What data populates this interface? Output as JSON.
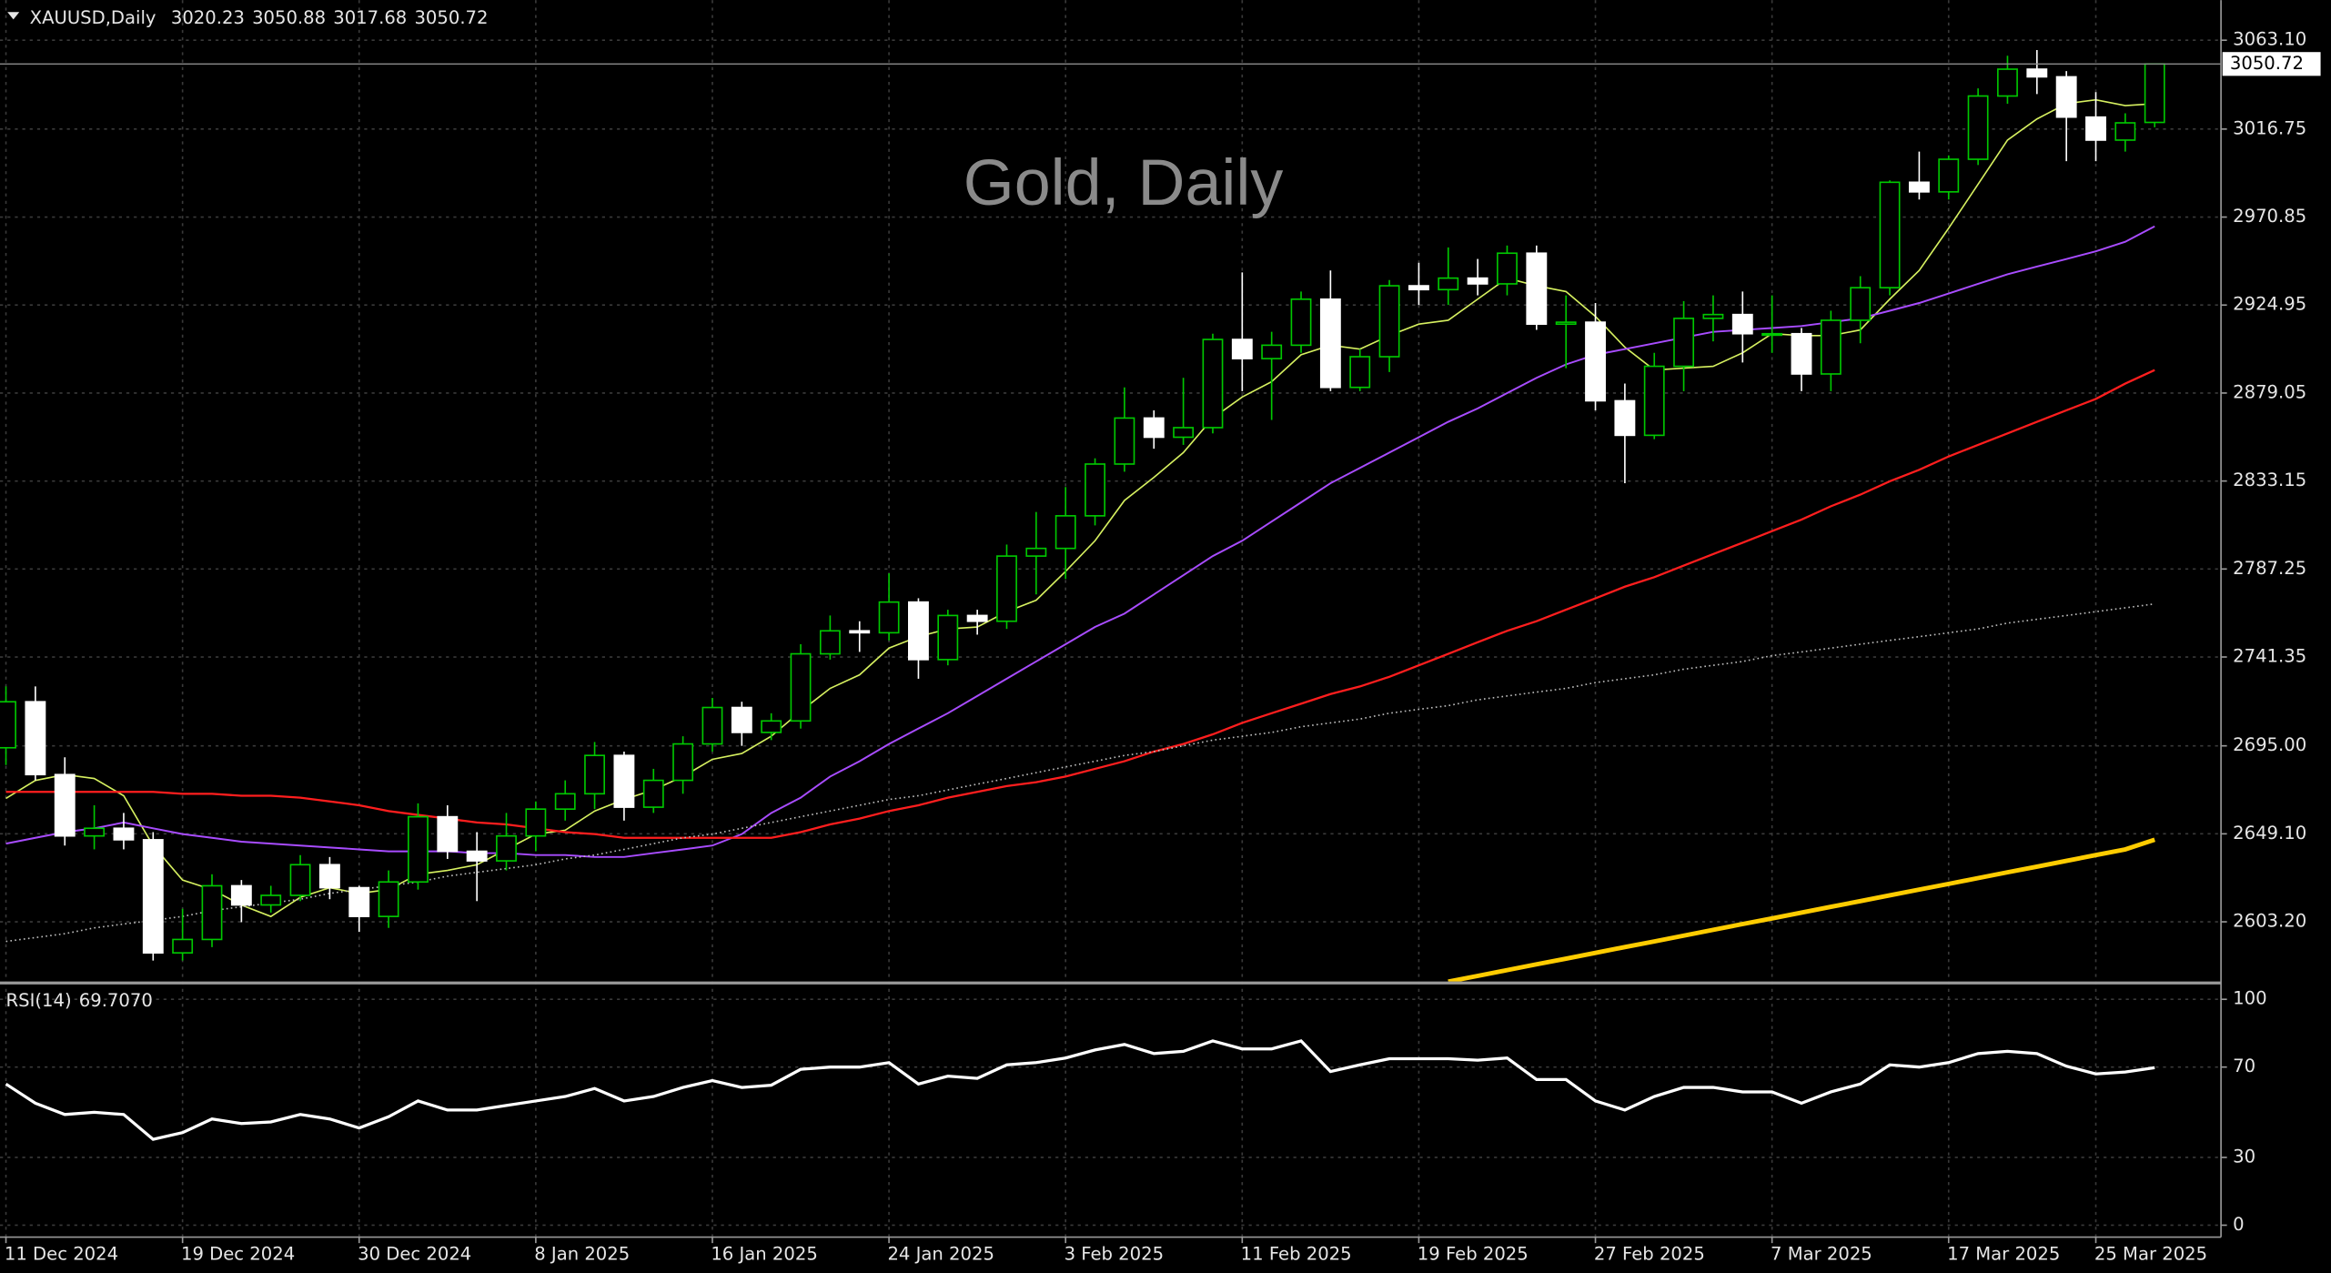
{
  "chart_data": {
    "type": "candlestick",
    "symbol": "XAUUSD,Daily",
    "title": "Gold, Daily",
    "categories": [
      "11 Dec 2024",
      null,
      null,
      null,
      null,
      null,
      "19 Dec 2024",
      null,
      null,
      null,
      null,
      null,
      "30 Dec 2024",
      null,
      null,
      null,
      null,
      null,
      "8 Jan 2025",
      null,
      null,
      null,
      null,
      null,
      "16 Jan 2025",
      null,
      null,
      null,
      null,
      null,
      "24 Jan 2025",
      null,
      null,
      null,
      null,
      null,
      "3 Feb 2025",
      null,
      null,
      null,
      null,
      null,
      "11 Feb 2025",
      null,
      null,
      null,
      null,
      null,
      "19 Feb 2025",
      null,
      null,
      null,
      null,
      null,
      "27 Feb 2025",
      null,
      null,
      null,
      null,
      null,
      "7 Mar 2025",
      null,
      null,
      null,
      null,
      null,
      "17 Mar 2025",
      null,
      null,
      null,
      null,
      "25 Mar 2025",
      null,
      null
    ],
    "open": [
      2694,
      2718,
      2680,
      2648,
      2652,
      2646,
      2587,
      2594,
      2622,
      2612,
      2617,
      2633,
      2621,
      2606,
      2624,
      2658,
      2640,
      2635,
      2648,
      2662,
      2670,
      2690,
      2663,
      2677,
      2696,
      2715,
      2702,
      2708,
      2743,
      2755,
      2754,
      2770,
      2740,
      2763,
      2760,
      2794,
      2798,
      2815,
      2842,
      2866,
      2856,
      2861,
      2907,
      2897,
      2904,
      2928,
      2882,
      2898,
      2935,
      2933,
      2939,
      2936,
      2952,
      2915,
      2916,
      2875,
      2857,
      2893,
      2918,
      2920,
      2910,
      2910,
      2889,
      2917,
      2934,
      2989,
      2984,
      3001,
      3034,
      3048,
      3044,
      3023,
      3011,
      3020.23
    ],
    "high": [
      2726,
      2726,
      2689,
      2664,
      2660,
      2650,
      2610,
      2628,
      2625,
      2622,
      2638,
      2637,
      2622,
      2630,
      2665,
      2664,
      2650,
      2660,
      2666,
      2677,
      2697,
      2692,
      2683,
      2700,
      2720,
      2718,
      2712,
      2748,
      2763,
      2760,
      2785,
      2772,
      2766,
      2766,
      2800,
      2817,
      2830,
      2845,
      2882,
      2870,
      2887,
      2910,
      2942,
      2911,
      2932,
      2943,
      2902,
      2938,
      2947,
      2955,
      2949,
      2956,
      2956,
      2930,
      2926,
      2884,
      2900,
      2927,
      2930,
      2932,
      2930,
      2913,
      2922,
      2940,
      2990,
      3005,
      3003,
      3038,
      3055,
      3058,
      3047,
      3036,
      3025,
      3050.88
    ],
    "low": [
      2685,
      2677,
      2643,
      2641,
      2641,
      2583,
      2583,
      2590,
      2603,
      2608,
      2614,
      2615,
      2598,
      2600,
      2620,
      2636,
      2614,
      2630,
      2640,
      2656,
      2662,
      2656,
      2660,
      2670,
      2692,
      2695,
      2698,
      2704,
      2740,
      2744,
      2750,
      2730,
      2737,
      2753,
      2756,
      2774,
      2782,
      2810,
      2838,
      2850,
      2852,
      2858,
      2880,
      2865,
      2900,
      2880,
      2880,
      2890,
      2925,
      2925,
      2930,
      2930,
      2912,
      2892,
      2870,
      2832,
      2855,
      2880,
      2906,
      2895,
      2900,
      2880,
      2880,
      2905,
      2930,
      2980,
      2980,
      2998,
      3030,
      3035,
      3000,
      3000,
      3005,
      3017.68
    ],
    "close": [
      2718,
      2680,
      2648,
      2652,
      2646,
      2587,
      2594,
      2622,
      2612,
      2617,
      2633,
      2621,
      2606,
      2624,
      2658,
      2640,
      2635,
      2648,
      2662,
      2670,
      2690,
      2663,
      2677,
      2696,
      2715,
      2702,
      2708,
      2743,
      2755,
      2754,
      2770,
      2740,
      2763,
      2760,
      2794,
      2798,
      2815,
      2842,
      2866,
      2856,
      2861,
      2907,
      2897,
      2904,
      2928,
      2882,
      2898,
      2935,
      2933,
      2939,
      2936,
      2952,
      2915,
      2916,
      2875,
      2857,
      2893,
      2918,
      2920,
      2910,
      2910,
      2889,
      2917,
      2934,
      2989,
      2984,
      3001,
      3034,
      3048,
      3044,
      3023,
      3011,
      3020,
      3050.72
    ],
    "up_color": "#00c800",
    "down_color": "#ffffff",
    "overlays": [
      {
        "color": "#d6f060",
        "style": "solid",
        "width": 1,
        "values": [
          2667.6,
          2677,
          2680,
          2678,
          2669,
          2643,
          2625,
          2620,
          2612,
          2606,
          2616,
          2621,
          2618,
          2620,
          2628,
          2630,
          2633,
          2641,
          2649,
          2651,
          2661,
          2667,
          2672,
          2679,
          2688,
          2691,
          2700,
          2713,
          2725,
          2732,
          2746,
          2752,
          2756,
          2757,
          2765,
          2771,
          2786,
          2802,
          2823,
          2835,
          2848,
          2866,
          2877,
          2885,
          2899,
          2904,
          2902,
          2909,
          2915,
          2917,
          2928,
          2939,
          2935,
          2932,
          2919,
          2903,
          2891,
          2892,
          2893,
          2900,
          2910,
          2909,
          2909,
          2912,
          2928,
          2943,
          2965,
          2988,
          3011,
          3022,
          3030,
          3032,
          3029,
          3030
        ]
      },
      {
        "color": "#a84cff",
        "style": "solid",
        "width": 1.2,
        "values": [
          2644,
          2647,
          2650,
          2652,
          2655,
          2652,
          2649,
          2647,
          2645,
          2644,
          2643,
          2642,
          2641,
          2640,
          2640,
          2640,
          2639,
          2639,
          2638,
          2638,
          2637,
          2637,
          2639,
          2641,
          2643,
          2649,
          2660,
          2668,
          2679,
          2687,
          2696,
          2704,
          2712,
          2721,
          2730,
          2739,
          2748,
          2757,
          2764,
          2774,
          2784,
          2794,
          2802,
          2812,
          2822,
          2832,
          2840,
          2848,
          2856,
          2864,
          2871,
          2879,
          2887,
          2894,
          2899,
          2902,
          2905,
          2908,
          2911,
          2912,
          2913,
          2914,
          2916,
          2918,
          2922,
          2926,
          2931,
          2936,
          2941,
          2945,
          2949,
          2953,
          2958,
          2966
        ]
      },
      {
        "color": "#ff1e1e",
        "style": "solid",
        "width": 1.4,
        "values": [
          2671,
          2671,
          2671,
          2671,
          2671,
          2671,
          2670,
          2670,
          2669,
          2669,
          2668,
          2666,
          2664,
          2661,
          2659,
          2657,
          2655,
          2654,
          2652,
          2650,
          2649,
          2647,
          2647,
          2647,
          2647,
          2647,
          2647,
          2650,
          2654,
          2657,
          2661,
          2664,
          2668,
          2671,
          2674,
          2676,
          2679,
          2683,
          2687,
          2692,
          2696,
          2701,
          2707,
          2712,
          2717,
          2722,
          2726,
          2731,
          2737,
          2743,
          2749,
          2755,
          2760,
          2766,
          2772,
          2778,
          2783,
          2789,
          2795,
          2801,
          2807,
          2813,
          2820,
          2826,
          2833,
          2839,
          2846,
          2852,
          2858,
          2864,
          2870,
          2876,
          2884,
          2891
        ]
      },
      {
        "color": "#bdbdbd",
        "style": "dotted",
        "width": 1,
        "values": [
          2593,
          2595,
          2597,
          2600,
          2602,
          2604,
          2606,
          2609,
          2611,
          2613,
          2615,
          2618,
          2620,
          2622,
          2624,
          2627,
          2629,
          2631,
          2633,
          2636,
          2638,
          2641,
          2644,
          2647,
          2649,
          2652,
          2655,
          2658,
          2661,
          2664,
          2667,
          2669,
          2672,
          2675,
          2678,
          2681,
          2684,
          2687,
          2690,
          2692,
          2695,
          2698,
          2700,
          2702,
          2705,
          2707,
          2709,
          2712,
          2714,
          2716,
          2719,
          2721,
          2723,
          2725,
          2728,
          2730,
          2732,
          2735,
          2737,
          2739,
          2742,
          2744,
          2746,
          2748,
          2750,
          2752,
          2754,
          2756,
          2759,
          2761,
          2763,
          2765,
          2767,
          2769
        ]
      },
      {
        "color": "#ffcc00",
        "style": "solid",
        "width": 3,
        "values": [
          null,
          null,
          null,
          null,
          null,
          null,
          null,
          null,
          null,
          null,
          null,
          null,
          null,
          null,
          null,
          null,
          null,
          null,
          null,
          null,
          null,
          null,
          null,
          null,
          null,
          null,
          null,
          null,
          null,
          null,
          null,
          null,
          null,
          null,
          null,
          null,
          null,
          null,
          null,
          null,
          null,
          null,
          null,
          null,
          null,
          null,
          null,
          null,
          null,
          2572,
          2575,
          2578,
          2581,
          2584,
          2587,
          2590,
          2593,
          2596,
          2599,
          2602,
          2605,
          2608,
          2611,
          2614,
          2617,
          2620,
          2623,
          2626,
          2629,
          2632,
          2635,
          2638,
          2641,
          2646
        ]
      }
    ],
    "ylim": [
      2572.1,
      3084.0
    ],
    "yticks": [
      {
        "value": 3063.1,
        "label": "3063.10"
      },
      {
        "value": 3016.75,
        "label": "3016.75"
      },
      {
        "value": 2970.85,
        "label": "2970.85"
      },
      {
        "value": 2924.95,
        "label": "2924.95"
      },
      {
        "value": 2879.05,
        "label": "2879.05"
      },
      {
        "value": 2833.15,
        "label": "2833.15"
      },
      {
        "value": 2787.25,
        "label": "2787.25"
      },
      {
        "value": 2741.35,
        "label": "2741.35"
      },
      {
        "value": 2695,
        "label": "2695.00"
      },
      {
        "value": 2649.1,
        "label": "2649.10"
      },
      {
        "value": 2603.2,
        "label": "2603.20"
      }
    ],
    "grid": true,
    "rsi": {
      "title": "RSI(14)",
      "current_label": "69.7070",
      "color": "#ffffff",
      "values": [
        62.5,
        54,
        49,
        50,
        49,
        38,
        41,
        47,
        45,
        45.7,
        49,
        47,
        43,
        48,
        55,
        51,
        51,
        53,
        55,
        57,
        60.5,
        55,
        57,
        61,
        64,
        61,
        62,
        69,
        70,
        70,
        72,
        62.5,
        66,
        65,
        71,
        72,
        74,
        77.6,
        80,
        76,
        77,
        81.6,
        78,
        78,
        81.6,
        68,
        71,
        73.7,
        73.7,
        73.7,
        73,
        74,
        64.5,
        64.5,
        55,
        51,
        57,
        61,
        61,
        59,
        59,
        54,
        59,
        62.5,
        71,
        70,
        72,
        76,
        77,
        76,
        70.4,
        67,
        67.8,
        69.707
      ],
      "ylim": [
        -5.3,
        106.6
      ],
      "yticks": [
        100,
        70,
        30,
        0
      ]
    }
  }
}
